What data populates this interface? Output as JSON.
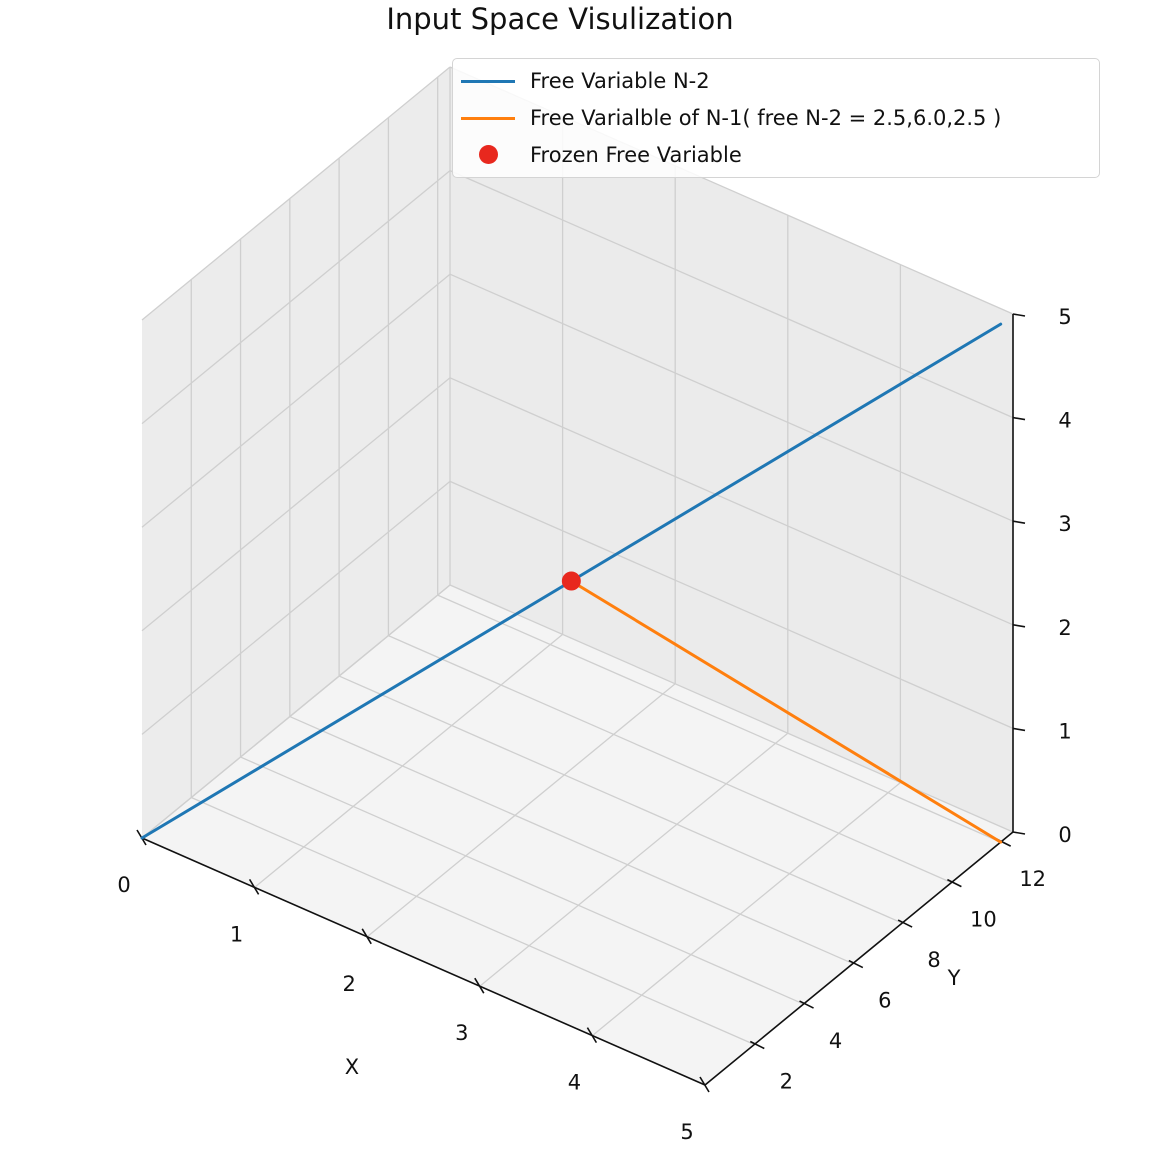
{
  "chart_data": {
    "type": "line",
    "title": "Input Space Visulization",
    "xlabel": "X",
    "ylabel": "Y",
    "zlabel": "",
    "xlim": [
      0,
      5
    ],
    "ylim": [
      0,
      12.5
    ],
    "zlim": [
      0,
      5
    ],
    "x_ticks": [
      "0",
      "1",
      "2",
      "3",
      "4",
      "5"
    ],
    "y_ticks": [
      "2",
      "4",
      "6",
      "8",
      "10",
      "12"
    ],
    "z_ticks": [
      "0",
      "1",
      "2",
      "3",
      "4",
      "5"
    ],
    "grid": true,
    "legend_position": "top-right",
    "series": [
      {
        "name": "Free Variable N-2",
        "kind": "line",
        "color": "#1f77b4",
        "points": [
          [
            0,
            0,
            0
          ],
          [
            2.5,
            6.0,
            2.5
          ],
          [
            5,
            12,
            5
          ]
        ]
      },
      {
        "name": "Free Varialble of N-1( free N-2 = 2.5,6.0,2.5 )",
        "kind": "line",
        "color": "#ff7f0e",
        "points": [
          [
            2.5,
            6.0,
            2.5
          ],
          [
            5,
            12,
            0
          ]
        ]
      },
      {
        "name": "Frozen Free Variable",
        "kind": "scatter",
        "color": "#e8281e",
        "points": [
          [
            2.5,
            6.0,
            2.5
          ]
        ]
      }
    ]
  }
}
